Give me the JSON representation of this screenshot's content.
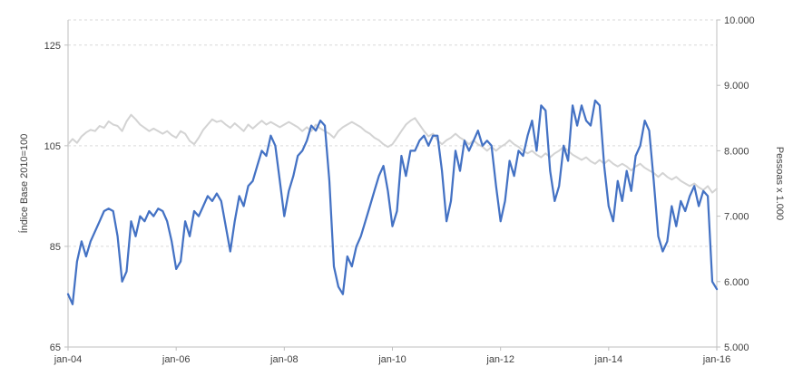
{
  "page": {
    "background": "#ffffff"
  },
  "colors": {
    "axis_line": "#bfbfbf",
    "grid": "#d9d9d9",
    "text": "#404040"
  },
  "chart_data": {
    "type": "line",
    "title": "",
    "legend": "none",
    "grid": "dashed-horizontal",
    "frequency": "monthly",
    "x_start_label": "jan-04",
    "x_end_label": "jan-16",
    "x_tick_labels": [
      "jan-04",
      "jan-06",
      "jan-08",
      "jan-10",
      "jan-12",
      "jan-14",
      "jan-16"
    ],
    "x_tick_month_indices": [
      0,
      24,
      48,
      72,
      96,
      120,
      144
    ],
    "left_axis": {
      "title": "Índice Base 2010=100",
      "min": 65,
      "max": 130,
      "tick_values": [
        65,
        85,
        105,
        125
      ],
      "gridline_values": [
        85,
        105,
        125,
        130
      ]
    },
    "right_axis": {
      "title": "Pessoas x 1.000",
      "min": 5000,
      "max": 10000,
      "tick_values": [
        5000,
        6000,
        7000,
        8000,
        9000,
        10000
      ],
      "tick_labels": [
        "5.000",
        "6.000",
        "7.000",
        "8.000",
        "9.000",
        "10.000"
      ]
    },
    "series": [
      {
        "key": "pessoas",
        "name": "Pessoas x 1.000",
        "axis": "right",
        "color": "#d3d3d3",
        "width": 2,
        "values": [
          8100,
          8180,
          8120,
          8220,
          8280,
          8320,
          8300,
          8380,
          8350,
          8450,
          8400,
          8380,
          8300,
          8450,
          8550,
          8480,
          8400,
          8350,
          8300,
          8340,
          8300,
          8260,
          8300,
          8240,
          8200,
          8300,
          8260,
          8150,
          8100,
          8200,
          8320,
          8400,
          8480,
          8440,
          8460,
          8400,
          8350,
          8420,
          8360,
          8300,
          8400,
          8340,
          8400,
          8460,
          8400,
          8440,
          8400,
          8360,
          8400,
          8440,
          8400,
          8360,
          8300,
          8360,
          8300,
          8400,
          8340,
          8300,
          8260,
          8200,
          8300,
          8360,
          8400,
          8440,
          8400,
          8360,
          8300,
          8260,
          8200,
          8160,
          8100,
          8060,
          8100,
          8200,
          8300,
          8400,
          8460,
          8500,
          8400,
          8300,
          8220,
          8260,
          8160,
          8100,
          8160,
          8200,
          8260,
          8200,
          8160,
          8100,
          8160,
          8100,
          8060,
          8000,
          8060,
          8000,
          8060,
          8100,
          8160,
          8100,
          8060,
          8000,
          7960,
          8000,
          7940,
          7900,
          7960,
          7900,
          7960,
          8000,
          8060,
          8000,
          7940,
          7900,
          7860,
          7900,
          7840,
          7800,
          7860,
          7800,
          7860,
          7800,
          7760,
          7800,
          7760,
          7700,
          7760,
          7800,
          7740,
          7700,
          7660,
          7600,
          7660,
          7600,
          7560,
          7600,
          7540,
          7500,
          7460,
          7500,
          7440,
          7400,
          7460,
          7360,
          7420
        ]
      },
      {
        "key": "indice",
        "name": "Índice Base 2010=100",
        "axis": "left",
        "color": "#4472c4",
        "width": 2.25,
        "values": [
          75.5,
          73.5,
          82,
          86,
          83,
          86,
          88,
          90,
          92,
          92.5,
          92,
          87,
          78,
          80,
          90,
          87,
          91,
          90,
          92,
          91,
          92.5,
          92,
          90,
          86,
          80.5,
          82,
          90,
          87,
          92,
          91,
          93,
          95,
          94,
          95.5,
          94,
          89,
          84,
          90,
          95,
          93,
          97,
          98,
          101,
          104,
          103,
          107,
          105,
          98,
          91,
          96,
          99,
          103,
          104,
          106,
          109,
          108,
          110,
          109,
          98,
          81,
          77,
          75.5,
          83,
          81,
          85,
          87,
          90,
          93,
          96,
          99,
          101,
          96,
          89,
          92,
          103,
          99,
          104,
          104,
          106,
          107,
          105,
          107,
          107,
          100,
          90,
          94,
          104,
          100,
          106,
          104,
          106,
          108,
          105,
          106,
          105,
          97,
          90,
          94,
          102,
          99,
          104,
          103,
          107,
          110,
          104,
          113,
          112,
          100,
          94,
          97,
          105,
          102,
          113,
          109,
          113,
          110,
          109,
          114,
          113,
          101,
          93,
          90,
          98,
          94,
          100,
          96,
          103,
          105,
          110,
          108,
          98,
          87,
          84,
          86,
          93,
          89,
          94,
          92,
          95,
          97,
          93,
          96,
          95,
          78,
          76.5
        ]
      }
    ]
  }
}
